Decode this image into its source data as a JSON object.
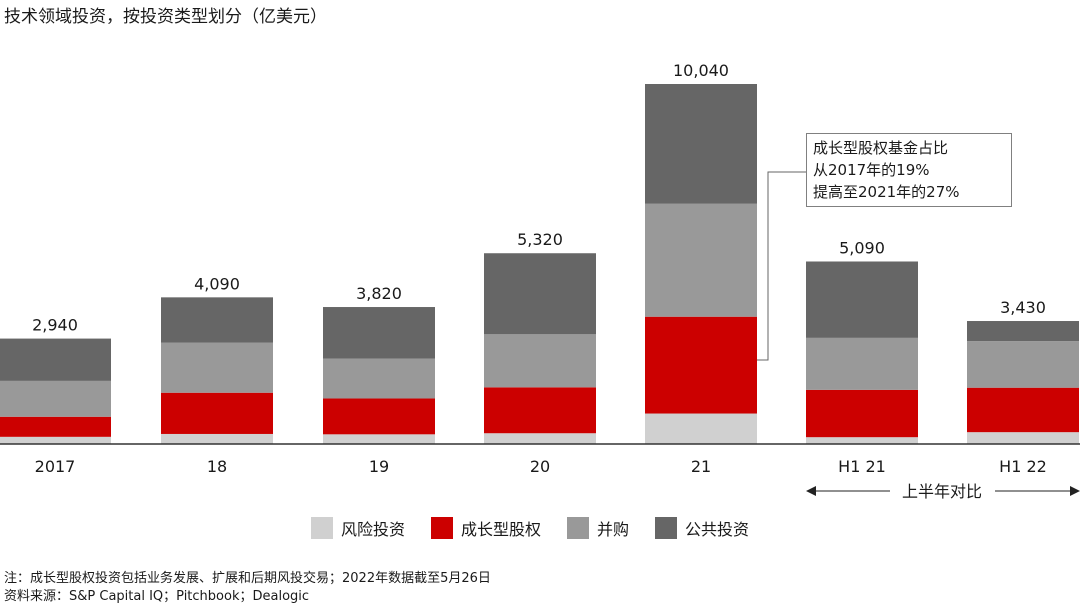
{
  "title": "技术领域投资，按投资类型划分（亿美元）",
  "chart_data": {
    "type": "bar",
    "stacked": true,
    "categories": [
      "2017",
      "18",
      "19",
      "20",
      "21",
      "H1 21",
      "H1 22"
    ],
    "series": [
      {
        "name": "风险投资",
        "color": "#d0d0d0",
        "values": [
          200,
          280,
          270,
          300,
          850,
          190,
          330
        ]
      },
      {
        "name": "成长型股权",
        "color": "#cc0000",
        "values": [
          560,
          1150,
          1000,
          1280,
          2700,
          1320,
          1240
        ]
      },
      {
        "name": "并购",
        "color": "#999999",
        "values": [
          1000,
          1400,
          1110,
          1480,
          3150,
          1450,
          1300
        ]
      },
      {
        "name": "公共投资",
        "color": "#666666",
        "values": [
          1180,
          1260,
          1440,
          2260,
          3340,
          2130,
          560
        ]
      }
    ],
    "totals": [
      "2,940",
      "4,090",
      "3,820",
      "5,320",
      "10,040",
      "5,090",
      "3,430"
    ],
    "ylim": [
      0,
      10040
    ]
  },
  "annotation": {
    "lines": [
      "成长型股权基金占比",
      "从2017年的19%",
      "提高至2021年的27%"
    ]
  },
  "bracket_label": "上半年对比",
  "legend": [
    "风险投资",
    "成长型股权",
    "并购",
    "公共投资"
  ],
  "footnote": [
    "注：成长型股权投资包括业务发展、扩展和后期风投交易；2022年数据截至5月26日",
    "资料来源：S&P Capital IQ；Pitchbook；Dealogic"
  ]
}
